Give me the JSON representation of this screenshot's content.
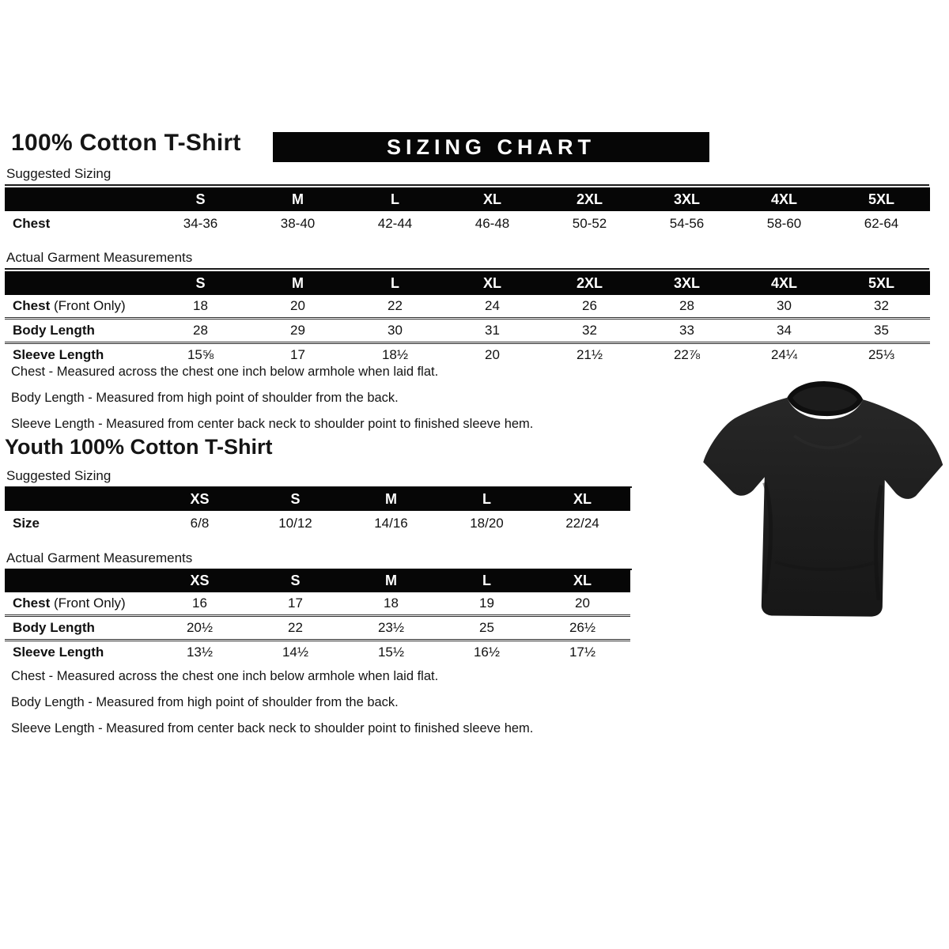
{
  "header": {
    "title": "100% Cotton T-Shirt",
    "banner": "SIZING CHART"
  },
  "adult": {
    "suggested": {
      "label": "Suggested Sizing",
      "columns": [
        "S",
        "M",
        "L",
        "XL",
        "2XL",
        "3XL",
        "4XL",
        "5XL"
      ],
      "rows": [
        {
          "label": "Chest",
          "suffix": "",
          "values": [
            "34-36",
            "38-40",
            "42-44",
            "46-48",
            "50-52",
            "54-56",
            "58-60",
            "62-64"
          ]
        }
      ]
    },
    "measurements": {
      "label": "Actual Garment Measurements",
      "columns": [
        "S",
        "M",
        "L",
        "XL",
        "2XL",
        "3XL",
        "4XL",
        "5XL"
      ],
      "rows": [
        {
          "label": "Chest",
          "suffix": "(Front Only)",
          "values": [
            "18",
            "20",
            "22",
            "24",
            "26",
            "28",
            "30",
            "32"
          ]
        },
        {
          "label": "Body Length",
          "suffix": "",
          "values": [
            "28",
            "29",
            "30",
            "31",
            "32",
            "33",
            "34",
            "35"
          ]
        },
        {
          "label": "Sleeve Length",
          "suffix": "",
          "values": [
            "15⅝",
            "17",
            "18½",
            "20",
            "21½",
            "22⅞",
            "24¼",
            "25⅓"
          ]
        }
      ]
    },
    "notes": [
      "Chest - Measured across the chest one inch below armhole when laid flat.",
      "Body Length - Measured from high point of shoulder from the back.",
      "Sleeve Length - Measured from center back neck to shoulder point to finished sleeve hem."
    ]
  },
  "youth": {
    "title": "Youth 100% Cotton T-Shirt",
    "suggested": {
      "label": "Suggested Sizing",
      "columns": [
        "XS",
        "S",
        "M",
        "L",
        "XL"
      ],
      "rows": [
        {
          "label": "Size",
          "suffix": "",
          "values": [
            "6/8",
            "10/12",
            "14/16",
            "18/20",
            "22/24"
          ]
        }
      ]
    },
    "measurements": {
      "label": "Actual Garment Measurements",
      "columns": [
        "XS",
        "S",
        "M",
        "L",
        "XL"
      ],
      "rows": [
        {
          "label": "Chest",
          "suffix": "(Front Only)",
          "values": [
            "16",
            "17",
            "18",
            "19",
            "20"
          ]
        },
        {
          "label": "Body Length",
          "suffix": "",
          "values": [
            "20½",
            "22",
            "23½",
            "25",
            "26½"
          ]
        },
        {
          "label": "Sleeve Length",
          "suffix": "",
          "values": [
            "13½",
            "14½",
            "15½",
            "16½",
            "17½"
          ]
        }
      ]
    },
    "notes": [
      "Chest - Measured across the chest one inch below armhole when laid flat.",
      "Body Length - Measured from high point of shoulder from the back.",
      "Sleeve Length - Measured from center back neck to shoulder point to finished sleeve hem."
    ]
  },
  "tshirt": {
    "description": "Black short-sleeve crew-neck t-shirt",
    "color": "#1e1e1e"
  }
}
